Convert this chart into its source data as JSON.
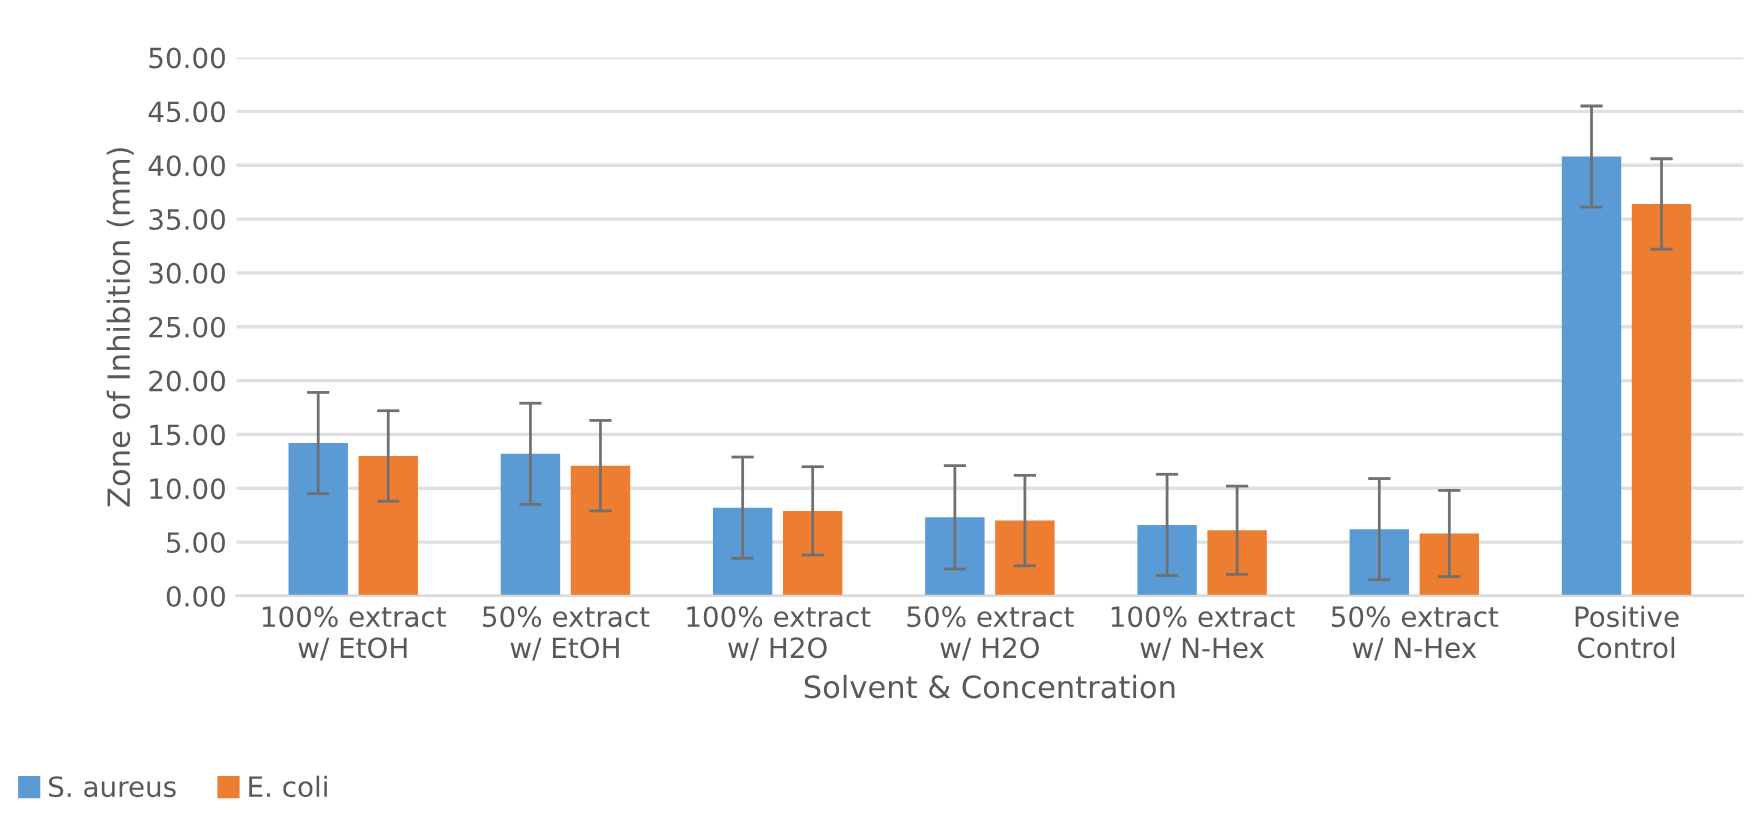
{
  "chart_data": {
    "type": "bar",
    "xlabel": "Solvent & Concentration",
    "ylabel": "Zone of Inhibition (mm)",
    "categories": [
      "100% extract\nw/ EtOH",
      "50% extract\nw/ EtOH",
      "100% extract\nw/ H2O",
      "50% extract\nw/ H2O",
      "100% extract\nw/ N-Hex",
      "50% extract\nw/ N-Hex",
      "Positive\nControl"
    ],
    "series": [
      {
        "name": "S. aureus",
        "color": "#5b9bd5",
        "values": [
          14.2,
          13.2,
          8.2,
          7.3,
          6.6,
          6.2,
          40.8
        ],
        "errors": [
          4.7,
          4.7,
          4.7,
          4.8,
          4.7,
          4.7,
          4.7
        ]
      },
      {
        "name": "E. coli",
        "color": "#ed7d31",
        "values": [
          13.0,
          12.1,
          7.9,
          7.0,
          6.1,
          5.8,
          36.4
        ],
        "errors": [
          4.2,
          4.2,
          4.1,
          4.2,
          4.1,
          4.0,
          4.2
        ]
      }
    ],
    "ylim": [
      0,
      50
    ],
    "yticks": [
      {
        "value": 0,
        "label": "0.00"
      },
      {
        "value": 5,
        "label": "5.00"
      },
      {
        "value": 10,
        "label": "10.00"
      },
      {
        "value": 15,
        "label": "15.00"
      },
      {
        "value": 20,
        "label": "20.00"
      },
      {
        "value": 25,
        "label": "25.00"
      },
      {
        "value": 30,
        "label": "30.00"
      },
      {
        "value": 35,
        "label": "35.00"
      },
      {
        "value": 40,
        "label": "40.00"
      },
      {
        "value": 45,
        "label": "45.00"
      },
      {
        "value": 50,
        "label": "50.00"
      }
    ],
    "grid": "y",
    "legend": "bottom left"
  }
}
